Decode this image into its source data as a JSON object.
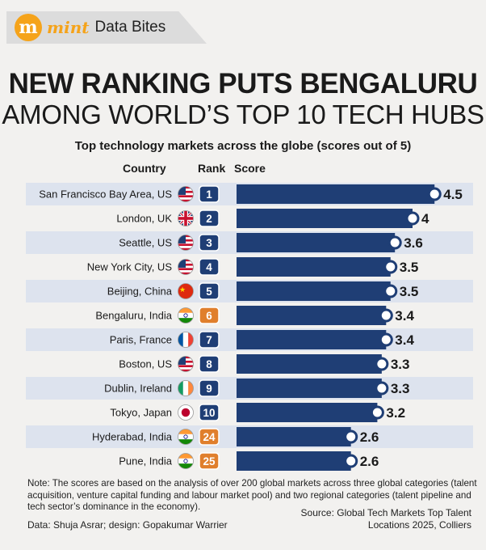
{
  "brand": {
    "logo_letter": "m",
    "name": "mint",
    "section": "Data Bites"
  },
  "headline": {
    "line1": "NEW RANKING PUTS BENGALURU",
    "line2": "AMONG WORLD’S TOP 10 TECH HUBS"
  },
  "colors": {
    "bar": "#1f3e75",
    "row_shade": "#dde3ee",
    "rank_badge": "#1f3e75",
    "rank_badge_india": "#e07f2c",
    "brand_orange": "#f5a31a"
  },
  "chart_data": {
    "type": "bar",
    "orientation": "horizontal",
    "title": "Top technology markets across the globe (scores out of 5)",
    "column_headers": {
      "country": "Country",
      "rank": "Rank",
      "score": "Score"
    },
    "xlim": [
      0,
      5
    ],
    "categories": [
      "San Francisco Bay Area, US",
      "London, UK",
      "Seattle, US",
      "New York City, US",
      "Beijing, China",
      "Bengaluru, India",
      "Paris, France",
      "Boston, US",
      "Dublin, Ireland",
      "Tokyo, Japan",
      "Hyderabad, India",
      "Pune, India"
    ],
    "ranks": [
      "1",
      "2",
      "3",
      "4",
      "5",
      "6",
      "7",
      "8",
      "9",
      "10",
      "24",
      "25"
    ],
    "flags": [
      "flag-us-icon",
      "flag-uk-icon",
      "flag-us-icon",
      "flag-us-icon",
      "flag-china-icon",
      "flag-india-icon",
      "flag-france-icon",
      "flag-us-icon",
      "flag-ireland-icon",
      "flag-japan-icon",
      "flag-india-icon",
      "flag-india-icon"
    ],
    "highlight_india": [
      false,
      false,
      false,
      false,
      false,
      true,
      false,
      false,
      false,
      false,
      true,
      true
    ],
    "values": [
      4.5,
      4,
      3.6,
      3.5,
      3.5,
      3.4,
      3.4,
      3.3,
      3.3,
      3.2,
      2.6,
      2.6
    ],
    "value_labels": [
      "4.5",
      "4",
      "3.6",
      "3.5",
      "3.5",
      "3.4",
      "3.4",
      "3.3",
      "3.3",
      "3.2",
      "2.6",
      "2.6"
    ],
    "grid": false,
    "legend": "none"
  },
  "footer": {
    "note": "Note: The scores are based on the analysis of over 200 global markets across three global categories (talent acquisition, venture capital funding and labour market pool) and two regional categories (talent pipeline and tech sector’s dominance in the economy).",
    "credit": "Data: Shuja Asrar; design: Gopakumar Warrier",
    "source_line1": "Source: Global Tech Markets Top Talent",
    "source_line2": "Locations 2025, Colliers"
  }
}
